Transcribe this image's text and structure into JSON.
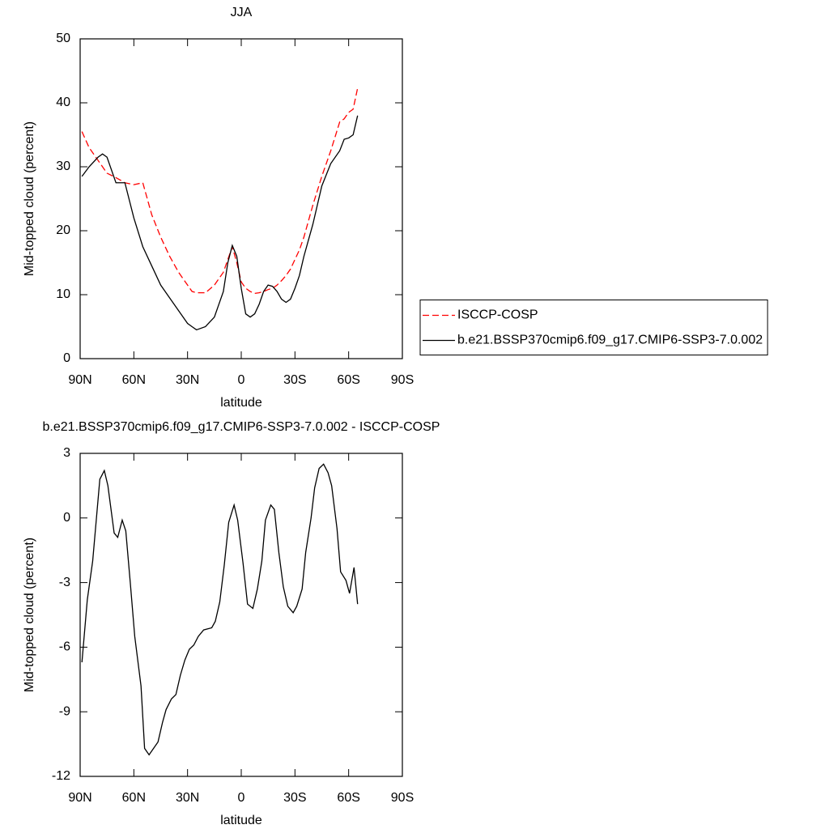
{
  "chart_data": [
    {
      "type": "line",
      "title": "JJA",
      "xlabel": "latitude",
      "ylabel": "Mid-topped cloud (percent)",
      "x": [
        89,
        85,
        80,
        77.5,
        75,
        70,
        65,
        60,
        55,
        50,
        45,
        40,
        35,
        30,
        27.5,
        25,
        20,
        15,
        10,
        7.5,
        5,
        2.5,
        0,
        -2.5,
        -5,
        -7.5,
        -10,
        -12.5,
        -15,
        -17.5,
        -20,
        -22.5,
        -25,
        -27.5,
        -30,
        -32.5,
        -35,
        -40,
        -45,
        -50,
        -55,
        -57.5,
        -60,
        -62.5,
        -65
      ],
      "series": [
        {
          "name": "ISCCP-COSP",
          "color": "#ff0000",
          "line_style": "dashed",
          "values": [
            35.5,
            33,
            31,
            30,
            29,
            28.3,
            27.5,
            27.2,
            27.5,
            22.5,
            19,
            16,
            13.5,
            11.5,
            10.5,
            10.3,
            10.3,
            11.5,
            13.5,
            15.5,
            17.5,
            15,
            12,
            11,
            10.5,
            10.2,
            10.3,
            10.5,
            10.8,
            11,
            11.5,
            12.2,
            13,
            14,
            15.5,
            17,
            19,
            24,
            28.5,
            32.5,
            37,
            37.5,
            38.5,
            39,
            42.3
          ]
        },
        {
          "name": "b.e21.BSSP370cmip6.f09_g17.CMIP6-SSP3-7.0.002",
          "color": "#000000",
          "line_style": "solid",
          "values": [
            28.5,
            30,
            31.5,
            32,
            31.5,
            27.5,
            27.5,
            22,
            17.5,
            14.5,
            11.5,
            9.5,
            7.5,
            5.5,
            5,
            4.5,
            5,
            6.5,
            10.5,
            15,
            17.7,
            16,
            11,
            7,
            6.5,
            7,
            8.5,
            10.5,
            11.5,
            11.3,
            10.5,
            9.3,
            8.8,
            9.3,
            11,
            13,
            16,
            21,
            27,
            30.5,
            32.5,
            34.3,
            34.5,
            35,
            38
          ]
        }
      ],
      "xlim": [
        90,
        -90
      ],
      "xticks": [
        {
          "value": 90,
          "label": "90N"
        },
        {
          "value": 60,
          "label": "60N"
        },
        {
          "value": 30,
          "label": "30N"
        },
        0,
        {
          "value": -30,
          "label": "30S"
        },
        {
          "value": -60,
          "label": "60S"
        },
        {
          "value": -90,
          "label": "90S"
        }
      ],
      "ylim": [
        0,
        50
      ],
      "yticks": [
        0,
        10,
        20,
        30,
        40,
        50
      ],
      "legend_position": "right"
    },
    {
      "type": "line",
      "title": "b.e21.BSSP370cmip6.f09_g17.CMIP6-SSP3-7.0.002 - ISCCP-COSP",
      "xlabel": "latitude",
      "ylabel": "Mid-topped cloud (percent)",
      "x": [
        89,
        86,
        83,
        79,
        76.5,
        74.5,
        71,
        69,
        66.5,
        64.5,
        62,
        59.5,
        56,
        54,
        51.5,
        46.5,
        44,
        42,
        39,
        36.5,
        34,
        31.5,
        29,
        26.5,
        24,
        21,
        16.5,
        14.5,
        12,
        9.5,
        7,
        4,
        2,
        -1,
        -3.5,
        -6.5,
        -9,
        -11.5,
        -13.5,
        -16.5,
        -18.5,
        -21,
        -23.5,
        -26,
        -29,
        -31,
        -34,
        -36,
        -39,
        -41,
        -43.5,
        -46,
        -48.5,
        -50.5,
        -53.5,
        -55.5,
        -58.5,
        -60.5,
        -63,
        -65
      ],
      "series": [
        {
          "color": "#000000",
          "line_style": "solid",
          "values": [
            -6.7,
            -3.8,
            -2,
            1.8,
            2.2,
            1.5,
            -0.7,
            -0.9,
            -0.1,
            -0.6,
            -3,
            -5.5,
            -7.8,
            -10.7,
            -11,
            -10.4,
            -9.5,
            -8.9,
            -8.4,
            -8.2,
            -7.3,
            -6.6,
            -6.1,
            -5.9,
            -5.5,
            -5.2,
            -5.1,
            -4.8,
            -3.9,
            -2.2,
            -0.2,
            0.6,
            -0.1,
            -2.1,
            -4,
            -4.2,
            -3.3,
            -2,
            -0.1,
            0.6,
            0.4,
            -1.6,
            -3.2,
            -4.1,
            -4.4,
            -4.1,
            -3.3,
            -1.6,
            0,
            1.4,
            2.3,
            2.5,
            2.1,
            1.5,
            -0.5,
            -2.5,
            -2.9,
            -3.5,
            -2.3,
            -4
          ]
        }
      ],
      "xlim": [
        90,
        -90
      ],
      "xticks": [
        {
          "value": 90,
          "label": "90N"
        },
        {
          "value": 60,
          "label": "60N"
        },
        {
          "value": 30,
          "label": "30N"
        },
        0,
        {
          "value": -30,
          "label": "30S"
        },
        {
          "value": -60,
          "label": "60S"
        },
        {
          "value": -90,
          "label": "90S"
        }
      ],
      "ylim": [
        -12,
        3
      ],
      "yticks": [
        -12,
        -9,
        -6,
        -3,
        0,
        3
      ]
    }
  ]
}
